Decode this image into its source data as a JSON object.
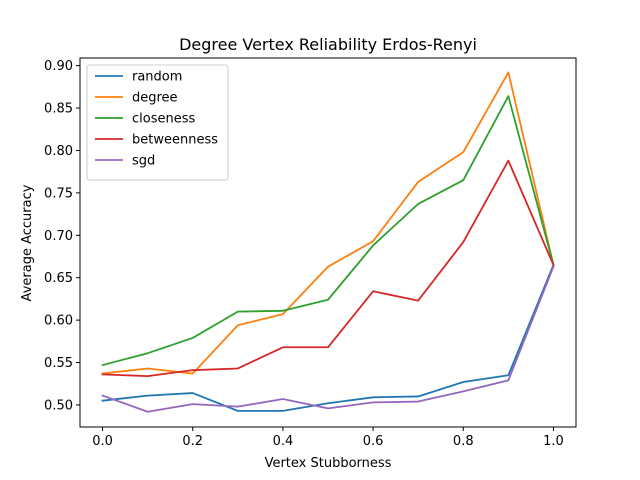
{
  "chart_data": {
    "type": "line",
    "title": "Degree Vertex Reliability Erdos-Renyi",
    "xlabel": "Vertex Stubborness",
    "ylabel": "Average Accuracy",
    "xlim": [
      -0.05,
      1.05
    ],
    "ylim": [
      0.474,
      0.909
    ],
    "x": [
      0.0,
      0.1,
      0.2,
      0.3,
      0.4,
      0.5,
      0.6,
      0.7,
      0.8,
      0.9,
      1.0
    ],
    "xticks": [
      0.0,
      0.2,
      0.4,
      0.6,
      0.8,
      1.0
    ],
    "xtick_labels": [
      "0.0",
      "0.2",
      "0.4",
      "0.6",
      "0.8",
      "1.0"
    ],
    "yticks": [
      0.5,
      0.55,
      0.6,
      0.65,
      0.7,
      0.75,
      0.8,
      0.85,
      0.9
    ],
    "ytick_labels": [
      "0.50",
      "0.55",
      "0.60",
      "0.65",
      "0.70",
      "0.75",
      "0.80",
      "0.85",
      "0.90"
    ],
    "grid": false,
    "legend_position": "top-left",
    "series": [
      {
        "name": "random",
        "color": "#1f77b4",
        "values": [
          0.505,
          0.511,
          0.514,
          0.493,
          0.493,
          0.502,
          0.509,
          0.51,
          0.527,
          0.535,
          0.665
        ]
      },
      {
        "name": "degree",
        "color": "#ff7f0e",
        "values": [
          0.537,
          0.543,
          0.537,
          0.594,
          0.607,
          0.663,
          0.693,
          0.763,
          0.798,
          0.892,
          0.665
        ]
      },
      {
        "name": "closeness",
        "color": "#2ca02c",
        "values": [
          0.547,
          0.561,
          0.579,
          0.61,
          0.611,
          0.624,
          0.688,
          0.737,
          0.765,
          0.864,
          0.665
        ]
      },
      {
        "name": "betweenness",
        "color": "#d62728",
        "values": [
          0.536,
          0.534,
          0.541,
          0.543,
          0.568,
          0.568,
          0.634,
          0.623,
          0.692,
          0.788,
          0.665
        ]
      },
      {
        "name": "sgd",
        "color": "#9467bd",
        "values": [
          0.511,
          0.492,
          0.501,
          0.498,
          0.507,
          0.496,
          0.503,
          0.504,
          0.516,
          0.529,
          0.663
        ]
      }
    ]
  }
}
